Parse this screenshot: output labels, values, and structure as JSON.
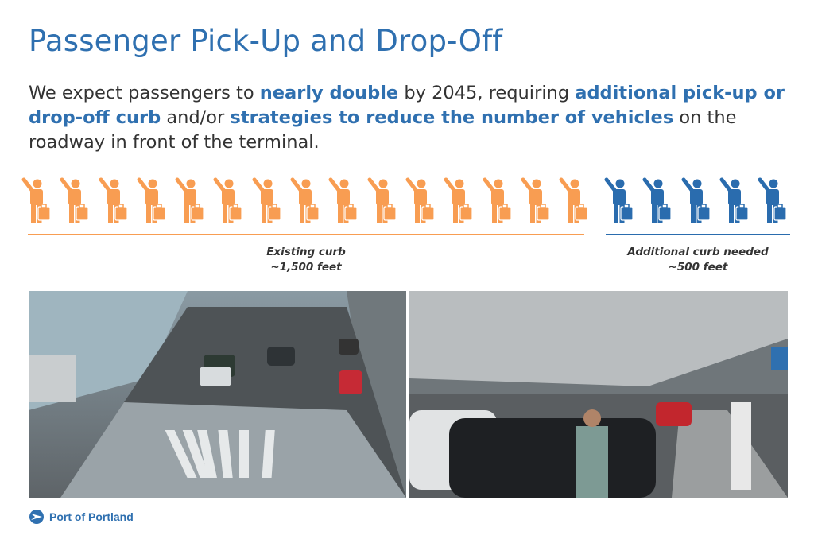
{
  "title": "Passenger Pick-Up and Drop-Off",
  "body": {
    "t1": "We expect passengers to ",
    "b1": "nearly double",
    "t2": " by 2045, requiring ",
    "b2": "additional pick-up or drop-off curb",
    "t3": " and/or ",
    "b3": "strategies to reduce the number of vehicles",
    "t4": " on the roadway in front of the terminal."
  },
  "graphic": {
    "existing_icons": 15,
    "additional_icons": 5,
    "existing_color": "#f89d52",
    "additional_color": "#2a6cae",
    "existing_label": "Existing curb",
    "existing_value": "~1,500 feet",
    "additional_label": "Additional curb needed",
    "additional_value": "~500 feet"
  },
  "photos": {
    "left": "terminal-curb-aerial-photo",
    "right": "covered-pickup-curb-photo"
  },
  "footer": {
    "logo_text": "Port of Portland"
  },
  "colors": {
    "accent": "#2f70b0",
    "text": "#333333"
  }
}
